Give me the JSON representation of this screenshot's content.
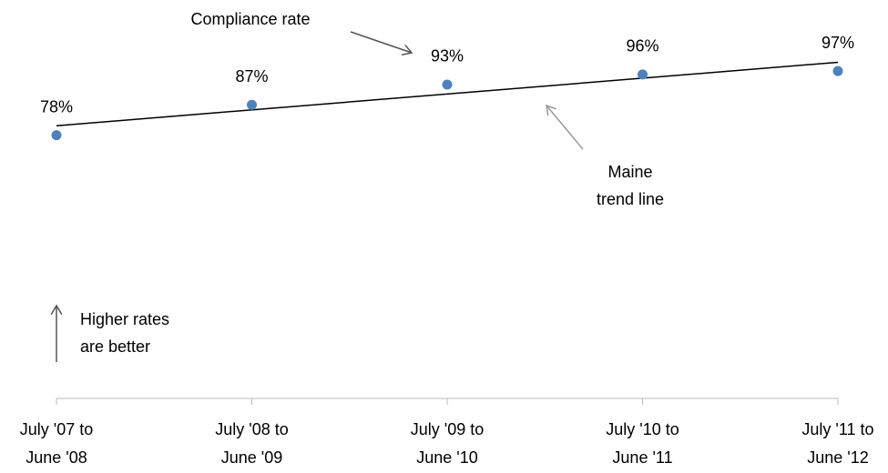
{
  "chart_data": {
    "type": "scatter",
    "categories": [
      [
        "July '07 to",
        "June '08"
      ],
      [
        "July '08 to",
        "June '09"
      ],
      [
        "July '09 to",
        "June '10"
      ],
      [
        "July '10 to",
        "June '11"
      ],
      [
        "July '11 to",
        "June '12"
      ]
    ],
    "values": [
      78,
      87,
      93,
      96,
      97
    ],
    "value_labels": [
      "78%",
      "87%",
      "93%",
      "96%",
      "97%"
    ],
    "color": "#4f81bd",
    "ylim": [
      0,
      100
    ],
    "trendline": true,
    "trendline_color": "#000000",
    "annotations": {
      "series_label": [
        "Compliance rate"
      ],
      "trend_label": [
        "Maine",
        "trend line"
      ],
      "note": [
        "Higher rates",
        "are better"
      ]
    }
  }
}
